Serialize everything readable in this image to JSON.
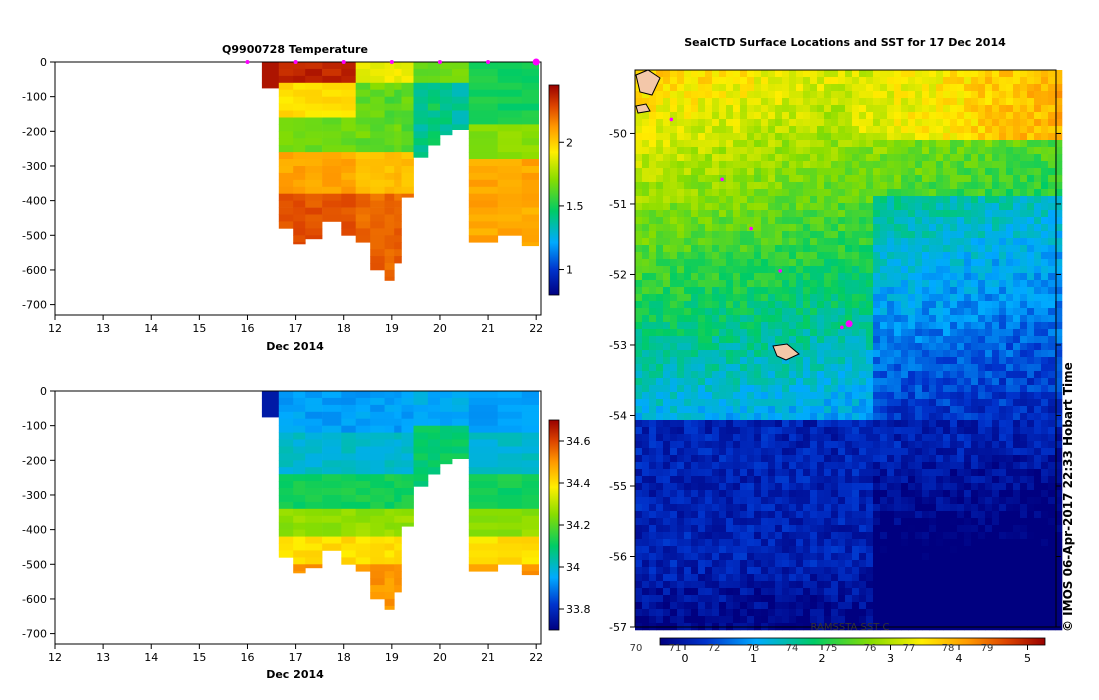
{
  "credit": "© IMOS 06-Apr-2017 22:33 Hobart Time",
  "chart_data": [
    {
      "type": "heatmap",
      "title": "Q9900728 Temperature",
      "xlabel": "Dec 2014",
      "ylabel": "",
      "xlim": [
        12,
        22.1
      ],
      "ylim": [
        -730,
        0
      ],
      "x_ticks": [
        "12",
        "13",
        "14",
        "15",
        "16",
        "17",
        "18",
        "19",
        "20",
        "21",
        "22"
      ],
      "y_ticks": [
        "0",
        "-100",
        "-200",
        "-300",
        "-400",
        "-500",
        "-600",
        "-700"
      ],
      "colorbar": {
        "min": 0.8,
        "max": 2.45,
        "ticks": [
          "1",
          "1.5",
          "2"
        ]
      },
      "profiles": [
        {
          "x0": 16.3,
          "x1": 16.65,
          "bottom": -75
        },
        {
          "x0": 16.65,
          "x1": 16.95,
          "bottom": -480
        },
        {
          "x0": 16.95,
          "x1": 17.2,
          "bottom": -525
        },
        {
          "x0": 17.2,
          "x1": 17.55,
          "bottom": -510
        },
        {
          "x0": 17.55,
          "x1": 17.95,
          "bottom": -460
        },
        {
          "x0": 17.95,
          "x1": 18.25,
          "bottom": -500
        },
        {
          "x0": 18.25,
          "x1": 18.55,
          "bottom": -520
        },
        {
          "x0": 18.55,
          "x1": 18.85,
          "bottom": -600
        },
        {
          "x0": 18.85,
          "x1": 19.05,
          "bottom": -630
        },
        {
          "x0": 19.05,
          "x1": 19.2,
          "bottom": -580
        },
        {
          "x0": 19.2,
          "x1": 19.45,
          "bottom": -390
        },
        {
          "x0": 19.45,
          "x1": 19.75,
          "bottom": -275
        },
        {
          "x0": 19.75,
          "x1": 20.0,
          "bottom": -240
        },
        {
          "x0": 20.0,
          "x1": 20.25,
          "bottom": -210
        },
        {
          "x0": 20.25,
          "x1": 20.6,
          "bottom": -195
        },
        {
          "x0": 20.6,
          "x1": 21.2,
          "bottom": -520
        },
        {
          "x0": 21.2,
          "x1": 21.7,
          "bottom": -500
        },
        {
          "x0": 21.7,
          "x1": 22.05,
          "bottom": -530
        }
      ],
      "station_markers_x": [
        16.0,
        17.0,
        18.0,
        19.0,
        20.0,
        21.0,
        22.0
      ]
    },
    {
      "type": "heatmap",
      "title": "",
      "xlabel": "Dec 2014",
      "ylabel": "",
      "xlim": [
        12,
        22.1
      ],
      "ylim": [
        -730,
        0
      ],
      "x_ticks": [
        "12",
        "13",
        "14",
        "15",
        "16",
        "17",
        "18",
        "19",
        "20",
        "21",
        "22"
      ],
      "y_ticks": [
        "0",
        "-100",
        "-200",
        "-300",
        "-400",
        "-500",
        "-600",
        "-700"
      ],
      "colorbar": {
        "min": 33.7,
        "max": 34.7,
        "ticks": [
          "33.8",
          "34",
          "34.2",
          "34.4",
          "34.6"
        ]
      },
      "profiles": "same as temperature panel"
    },
    {
      "type": "heatmap",
      "title": "SealCTD Surface Locations and SST for 17 Dec 2014",
      "xlabel": "",
      "ylabel": "",
      "ylim": [
        -57,
        -49.1
      ],
      "y_ticks": [
        "-50",
        "-51",
        "-52",
        "-53",
        "-54",
        "-55",
        "-56",
        "-57"
      ],
      "colorbar": {
        "label": "RAMSSTA SST C",
        "ticks_lower": [
          "0",
          "1",
          "2",
          "3",
          "4",
          "5"
        ],
        "ticks_upper": [
          "70",
          "71",
          "72",
          "73",
          "74",
          "75",
          "76",
          "77",
          "78",
          "79"
        ]
      },
      "seal_locations": [
        {
          "lon": 140.2,
          "lat": -49.8
        },
        {
          "lon": 140.9,
          "lat": -50.65
        },
        {
          "lon": 141.3,
          "lat": -51.35
        },
        {
          "lon": 141.7,
          "lat": -51.95
        },
        {
          "lon": 142.55,
          "lat": -52.75
        },
        {
          "lon": 142.65,
          "lat": -52.7,
          "large": true
        }
      ]
    }
  ]
}
